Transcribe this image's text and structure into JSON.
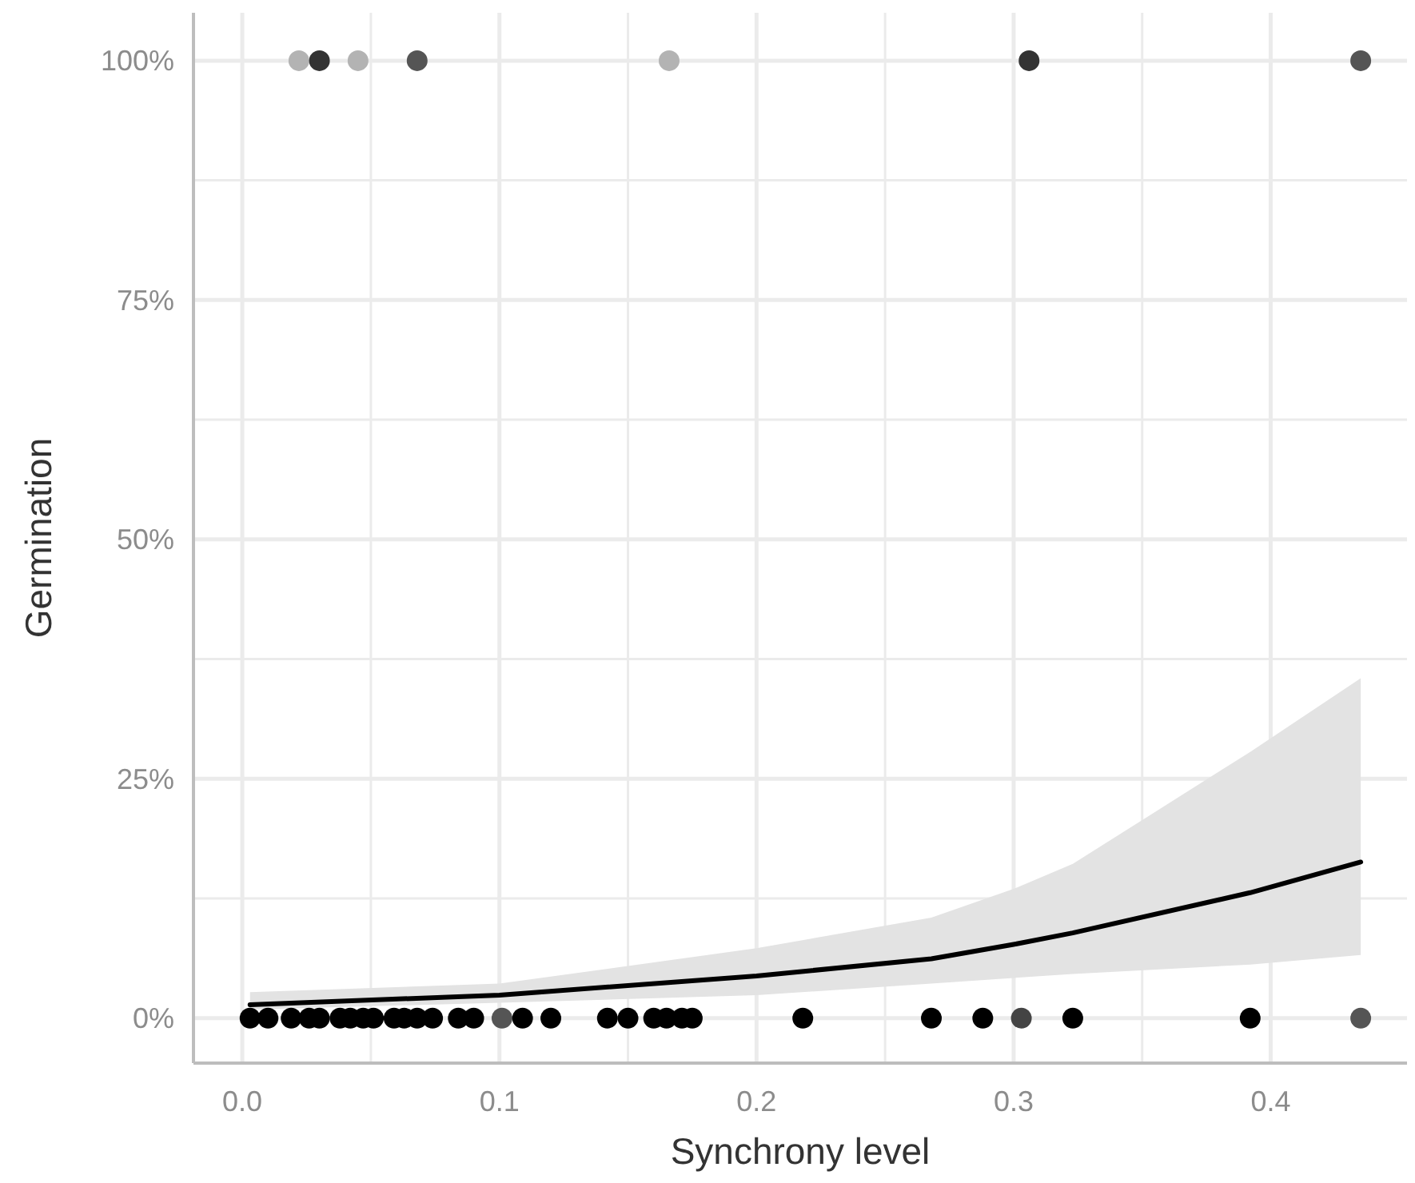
{
  "chart_data": {
    "type": "scatter",
    "xlabel": "Synchrony level",
    "ylabel": "Germination",
    "xlim": [
      -0.019,
      0.453
    ],
    "ylim": [
      -4.7,
      105
    ],
    "xticks": [
      {
        "value": 0,
        "label": "0.0"
      },
      {
        "value": 0.05,
        "label": null
      },
      {
        "value": 0.1,
        "label": "0.1"
      },
      {
        "value": 0.15,
        "label": null
      },
      {
        "value": 0.2,
        "label": "0.2"
      },
      {
        "value": 0.25,
        "label": null
      },
      {
        "value": 0.3,
        "label": "0.3"
      },
      {
        "value": 0.35,
        "label": null
      },
      {
        "value": 0.4,
        "label": "0.4"
      }
    ],
    "yticks": [
      {
        "value": 0,
        "label": "0%"
      },
      {
        "value": 12.5,
        "label": null
      },
      {
        "value": 25,
        "label": "25%"
      },
      {
        "value": 37.5,
        "label": null
      },
      {
        "value": 50,
        "label": "50%"
      },
      {
        "value": 62.5,
        "label": null
      },
      {
        "value": 75,
        "label": "75%"
      },
      {
        "value": 87.5,
        "label": null
      },
      {
        "value": 100,
        "label": "100%"
      }
    ],
    "grid": true,
    "series": [
      {
        "type": "line",
        "color": "#000000",
        "x": [
          0.003,
          0.1,
          0.2,
          0.268,
          0.3,
          0.323,
          0.392,
          0.435
        ],
        "values": [
          1.4,
          2.4,
          4.4,
          6.2,
          7.7,
          8.9,
          13.1,
          16.3
        ],
        "lower": [
          0.9,
          1.6,
          2.4,
          3.6,
          4.2,
          4.6,
          5.6,
          6.6
        ],
        "upper": [
          2.7,
          3.6,
          7.3,
          10.5,
          13.5,
          16.1,
          27.8,
          35.5
        ]
      },
      {
        "marker": "circle",
        "x": [
          0.022,
          0.03,
          0.045,
          0.068,
          0.166,
          0.306,
          0.435,
          0.003,
          0.01,
          0.019,
          0.026,
          0.03,
          0.038,
          0.042,
          0.047,
          0.051,
          0.059,
          0.063,
          0.068,
          0.074,
          0.084,
          0.09,
          0.101,
          0.109,
          0.12,
          0.142,
          0.15,
          0.16,
          0.165,
          0.171,
          0.175,
          0.218,
          0.268,
          0.288,
          0.303,
          0.323,
          0.392,
          0.435
        ],
        "values": [
          100,
          100,
          100,
          100,
          100,
          100,
          100,
          0,
          0,
          0,
          0,
          0,
          0,
          0,
          0,
          0,
          0,
          0,
          0,
          0,
          0,
          0,
          0,
          0,
          0,
          0,
          0,
          0,
          0,
          0,
          0,
          0,
          0,
          0,
          0,
          0,
          0,
          0
        ],
        "colors": [
          "#b3b3b3",
          "#333333",
          "#b3b3b3",
          "#555555",
          "#b3b3b3",
          "#333333",
          "#555555",
          "#000000",
          "#000000",
          "#000000",
          "#000000",
          "#000000",
          "#000000",
          "#000000",
          "#000000",
          "#000000",
          "#000000",
          "#000000",
          "#000000",
          "#000000",
          "#000000",
          "#000000",
          "#555555",
          "#000000",
          "#000000",
          "#000000",
          "#000000",
          "#000000",
          "#000000",
          "#000000",
          "#000000",
          "#000000",
          "#000000",
          "#000000",
          "#444444",
          "#000000",
          "#000000",
          "#555555"
        ]
      }
    ]
  }
}
